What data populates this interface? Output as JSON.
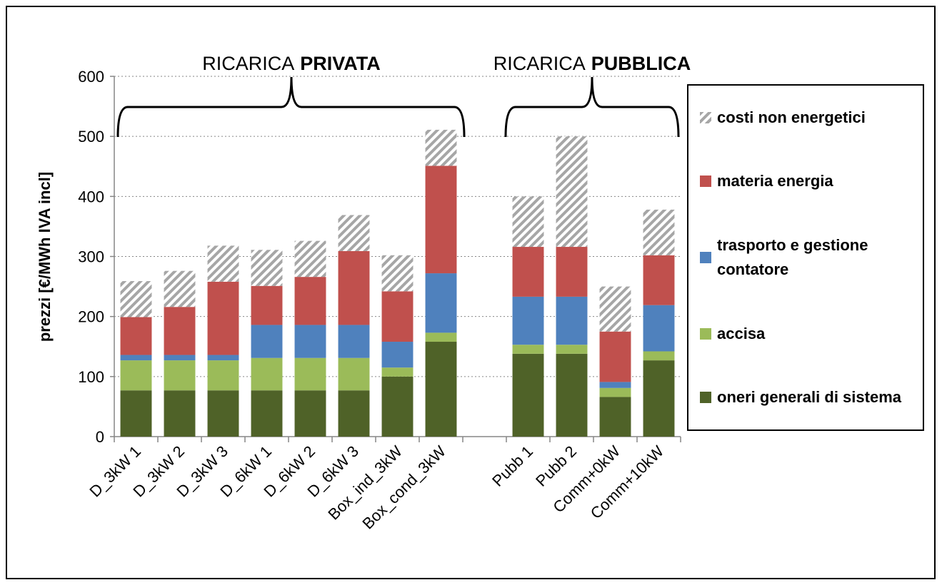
{
  "chart_data": {
    "type": "stacked-bar",
    "y_label": "prezzi  [€/MWh IVA incl]",
    "groups": [
      {
        "label": "RICARICA",
        "emphasis": "PRIVATA"
      },
      {
        "label": "RICARICA",
        "emphasis": "PUBBLICA"
      }
    ],
    "categories": [
      "D_3kW 1",
      "D_3kW 2",
      "D_3kW 3",
      "D_6kW 1",
      "D_6kW 2",
      "D_6kW 3",
      "Box_ind_3kW",
      "Box_cond_3kW",
      null,
      "Pubb 1",
      "Pubb 2",
      "Comm+0kW",
      "Comm+10kW"
    ],
    "series": [
      {
        "name": "oneri generali di sistema",
        "color": "#4f6228",
        "values": [
          77,
          77,
          77,
          77,
          77,
          77,
          100,
          158,
          null,
          138,
          138,
          66,
          127
        ]
      },
      {
        "name": "accisa",
        "color": "#9bbb59",
        "values": [
          50,
          50,
          50,
          54,
          54,
          54,
          15,
          15,
          null,
          15,
          15,
          15,
          15
        ]
      },
      {
        "name": "trasporto e gestione contatore",
        "color": "#4f81bd",
        "values": [
          9,
          9,
          9,
          55,
          55,
          55,
          43,
          99,
          null,
          80,
          80,
          10,
          77
        ]
      },
      {
        "name": "materia energia",
        "color": "#c0504d",
        "values": [
          63,
          80,
          122,
          65,
          80,
          123,
          84,
          179,
          null,
          83,
          83,
          84,
          83
        ]
      },
      {
        "name": "costi non energetici",
        "color": "#a6a6a6",
        "hatch": true,
        "values": [
          60,
          60,
          60,
          60,
          60,
          60,
          60,
          60,
          null,
          84,
          184,
          75,
          76
        ]
      }
    ],
    "ylim": [
      0,
      600
    ],
    "yticks": [
      0,
      100,
      200,
      300,
      400,
      500,
      600
    ],
    "grid": true,
    "legend": "right"
  }
}
